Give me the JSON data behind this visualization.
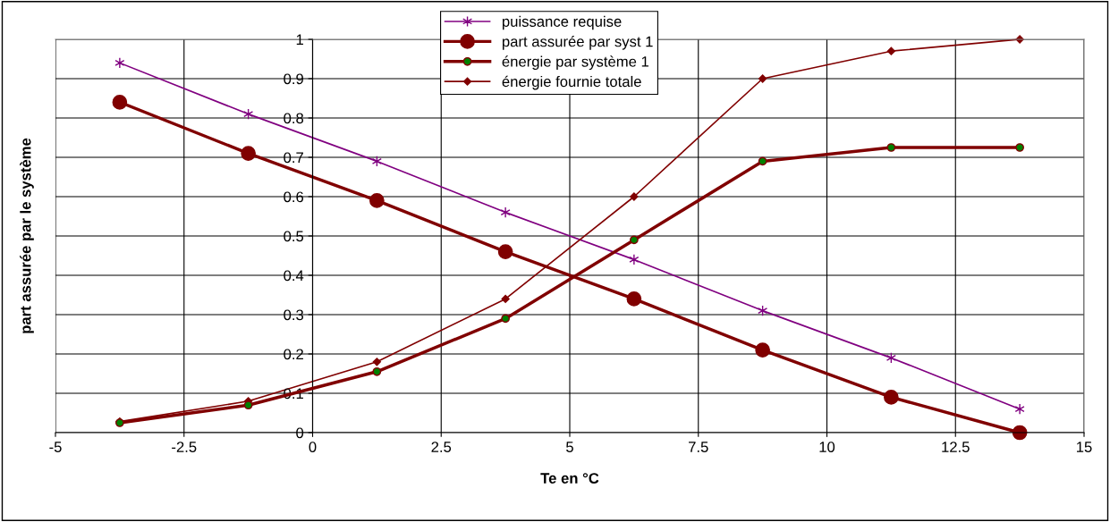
{
  "chart_data": {
    "type": "line",
    "xlabel": "Te en °C",
    "ylabel": "part assurée par le système",
    "x": [
      -3.75,
      -1.25,
      1.25,
      3.75,
      6.25,
      8.75,
      11.25,
      13.75
    ],
    "xlim": [
      -5,
      15
    ],
    "xticks": [
      -5,
      -2.5,
      0,
      2.5,
      5,
      7.5,
      10,
      12.5,
      15
    ],
    "ylim": [
      0,
      1
    ],
    "yticks": [
      0,
      0.1,
      0.2,
      0.3,
      0.4,
      0.5,
      0.6,
      0.7,
      0.8,
      0.9,
      1
    ],
    "grid": true,
    "legend": "top",
    "series": [
      {
        "name": "puissance requise",
        "color": "#800080",
        "marker": "cross",
        "values": [
          0.94,
          0.81,
          0.69,
          0.56,
          0.44,
          0.31,
          0.19,
          0.06
        ]
      },
      {
        "name": "part assurée par syst 1",
        "color": "#800000",
        "marker": "circle",
        "values": [
          0.84,
          0.71,
          0.59,
          0.46,
          0.34,
          0.21,
          0.09,
          0.0
        ]
      },
      {
        "name": "énergie par système 1",
        "color": "#800000",
        "marker": "circle",
        "values": [
          0.025,
          0.07,
          0.155,
          0.29,
          0.49,
          0.69,
          0.725,
          0.725
        ]
      },
      {
        "name": "énergie fournie totale",
        "color": "#800000",
        "marker": "diamond",
        "values": [
          0.028,
          0.08,
          0.18,
          0.34,
          0.6,
          0.9,
          0.97,
          1.0
        ]
      }
    ]
  }
}
